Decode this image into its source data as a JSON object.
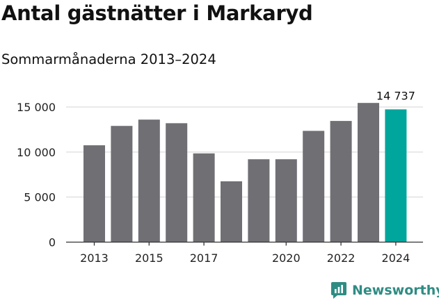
{
  "header": {
    "title": "Antal gästnätter i Markaryd",
    "subtitle": "Sommarmånaderna 2013–2024"
  },
  "colors": {
    "bar": "#706f74",
    "highlight": "#00a69c",
    "grid": "#d3d3d3",
    "axis": "#333333",
    "brand": "#2f8c83"
  },
  "brand": {
    "name": "Newsworthy",
    "icon": "newsworthy-bar-chart-icon"
  },
  "chart_data": {
    "type": "bar",
    "title": "Antal gästnätter i Markaryd",
    "subtitle": "Sommarmånaderna 2013–2024",
    "xlabel": "",
    "ylabel": "",
    "categories": [
      "2013",
      "2014",
      "2015",
      "2016",
      "2017",
      "2018",
      "2019",
      "2020",
      "2021",
      "2022",
      "2023",
      "2024"
    ],
    "values": [
      10750,
      12900,
      13600,
      13200,
      9850,
      6750,
      9200,
      9200,
      12350,
      13450,
      15450,
      14737
    ],
    "highlight_index": 11,
    "data_labels": [
      {
        "index": 11,
        "text": "14 737"
      }
    ],
    "x_tick_labels": [
      {
        "index": 0,
        "text": "2013"
      },
      {
        "index": 2,
        "text": "2015"
      },
      {
        "index": 4,
        "text": "2017"
      },
      {
        "index": 7,
        "text": "2020"
      },
      {
        "index": 9,
        "text": "2022"
      },
      {
        "index": 11,
        "text": "2024"
      }
    ],
    "y_ticks": [
      {
        "value": 0,
        "text": "0"
      },
      {
        "value": 5000,
        "text": "5 000"
      },
      {
        "value": 10000,
        "text": "10 000"
      },
      {
        "value": 15000,
        "text": "15 000"
      }
    ],
    "ylim": [
      0,
      16000
    ],
    "grid": true,
    "legend": "none"
  }
}
